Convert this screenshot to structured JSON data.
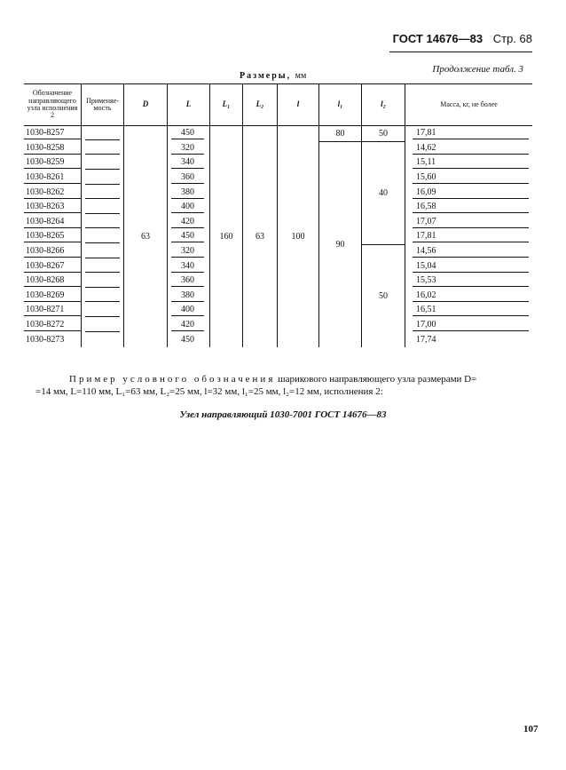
{
  "header": {
    "standard": "ГОСТ 14676—83",
    "page": "Стр. 68"
  },
  "continuation": "Продолжение табл. 3",
  "dimensions_title": "Размеры,",
  "dimensions_unit": "мм",
  "table": {
    "columns": [
      "Обозначение направляющего узла исполнения 2",
      "Применяе-мость",
      "D",
      "L",
      "L₁",
      "L₂",
      "l",
      "l₁",
      "l₂",
      "Масса, кг, не более"
    ],
    "designations": [
      "1030-8257",
      "1030-8258",
      "1030-8259",
      "1030-8261",
      "1030-8262",
      "1030-8263",
      "1030-8264",
      "1030-8265",
      "1030-8266",
      "1030-8267",
      "1030-8268",
      "1030-8269",
      "1030-8271",
      "1030-8272",
      "1030-8273"
    ],
    "L": [
      "450",
      "320",
      "340",
      "360",
      "380",
      "400",
      "420",
      "450",
      "320",
      "340",
      "360",
      "380",
      "400",
      "420",
      "450"
    ],
    "D": "63",
    "L1": "160",
    "L2": "63",
    "l": "100",
    "l1_first": "80",
    "l1_rest": "90",
    "l2_first": "50",
    "l2_mid": "40",
    "l2_last": "50",
    "mass": [
      "17,81",
      "14,62",
      "15,11",
      "15,60",
      "16,09",
      "16,58",
      "17,07",
      "17,81",
      "14,56",
      "15,04",
      "15,53",
      "16,02",
      "16,51",
      "17,00",
      "17,74"
    ]
  },
  "example": {
    "line1_spaced": "Пример условного обозначения",
    "line1_rest": "шарикового направляющего узла размерами D=",
    "line2": "=14 мм, L=110 мм, L₁=63 мм, L₂=25 мм, l=32 мм, l₁=25 мм, l₂=12 мм, исполнения 2:",
    "reference": "Узел направляющий 1030-7001 ГОСТ 14676—83"
  },
  "page_number": "107"
}
